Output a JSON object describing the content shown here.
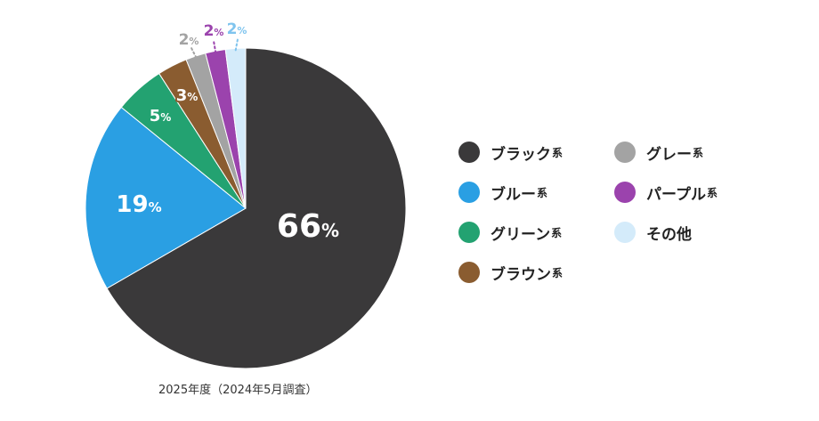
{
  "chart_data": {
    "type": "pie",
    "slices": [
      {
        "label": "ブラック",
        "suffix": "系",
        "value": 66,
        "value_text": "66",
        "unit": "%",
        "color": "#3a393a"
      },
      {
        "label": "ブルー",
        "suffix": "系",
        "value": 19,
        "value_text": "19",
        "unit": "%",
        "color": "#2a9fe3"
      },
      {
        "label": "グリーン",
        "suffix": "系",
        "value": 5,
        "value_text": "5",
        "unit": "%",
        "color": "#23a271"
      },
      {
        "label": "ブラウン",
        "suffix": "系",
        "value": 3,
        "value_text": "3",
        "unit": "%",
        "color": "#8a5c30"
      },
      {
        "label": "グレー",
        "suffix": "系",
        "value": 2,
        "value_text": "2",
        "unit": "%",
        "color": "#a3a3a3"
      },
      {
        "label": "パープル",
        "suffix": "系",
        "value": 2,
        "value_text": "2",
        "unit": "%",
        "color": "#9b43ad"
      },
      {
        "label": "その他",
        "suffix": "",
        "value": 2,
        "value_text": "2",
        "unit": "%",
        "color": "#d4ebfa"
      }
    ],
    "caption": "2025年度（2024年5月調査）",
    "legend_placement": "right"
  }
}
